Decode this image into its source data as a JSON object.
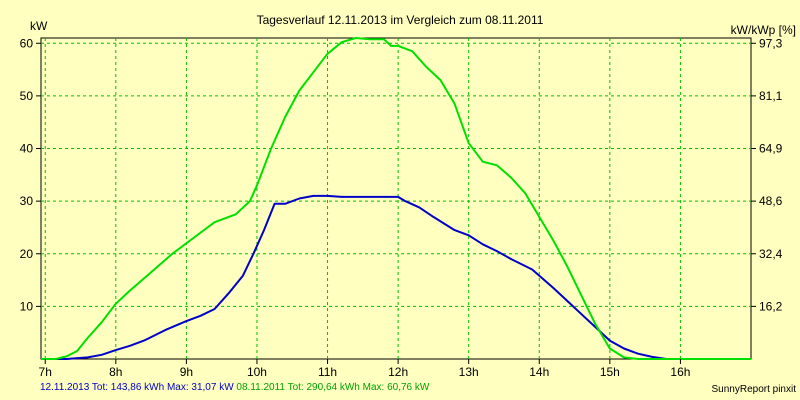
{
  "chart_data": {
    "type": "line",
    "title": "Tagesverlauf 12.11.2013 im Vergleich zum 08.11.2011",
    "ylabel_left": "kW",
    "ylabel_right": "kW/kWp [%]",
    "x_start": 6.94,
    "x_end": 17.0,
    "ylim": [
      0,
      61
    ],
    "y_ticks_left": [
      "10",
      "20",
      "30",
      "40",
      "50",
      "60"
    ],
    "y_ticks_left_values": [
      10,
      20,
      30,
      40,
      50,
      60
    ],
    "y_ticks_right": [
      "16,2",
      "32,4",
      "48,6",
      "64,9",
      "81,1",
      "97,3"
    ],
    "x_ticks": [
      "7h",
      "8h",
      "9h",
      "10h",
      "11h",
      "12h",
      "13h",
      "14h",
      "15h",
      "16h"
    ],
    "x_ticks_values": [
      7,
      8,
      9,
      10,
      11,
      12,
      13,
      14,
      15,
      16
    ],
    "grid": true,
    "series": [
      {
        "name": "12.11.2013",
        "color": "#0000C8",
        "x": [
          6.94,
          7.3,
          7.6,
          7.8,
          8.0,
          8.2,
          8.4,
          8.7,
          9.0,
          9.2,
          9.4,
          9.6,
          9.8,
          9.95,
          10.1,
          10.25,
          10.4,
          10.6,
          10.8,
          11.0,
          11.2,
          11.4,
          11.7,
          12.0,
          12.1,
          12.3,
          12.5,
          12.8,
          13.0,
          13.2,
          13.4,
          13.6,
          13.9,
          14.2,
          14.4,
          14.6,
          14.8,
          15.0,
          15.2,
          15.4,
          15.6,
          15.8,
          16.0,
          16.2,
          16.5,
          17.0
        ],
        "y": [
          0,
          0,
          0.3,
          0.8,
          1.7,
          2.5,
          3.5,
          5.5,
          7.2,
          8.2,
          9.5,
          12.5,
          15.8,
          20.0,
          24.5,
          29.5,
          29.5,
          30.5,
          31.0,
          31.0,
          30.8,
          30.8,
          30.8,
          30.8,
          30.0,
          28.8,
          27.0,
          24.5,
          23.5,
          21.8,
          20.5,
          19.0,
          17.0,
          13.5,
          11.0,
          8.5,
          6.0,
          3.5,
          2.0,
          1.0,
          0.4,
          0,
          0,
          0,
          0,
          0
        ]
      },
      {
        "name": "08.11.2011",
        "color": "#00E000",
        "x": [
          6.94,
          7.15,
          7.3,
          7.45,
          7.6,
          7.8,
          8.0,
          8.2,
          8.5,
          8.8,
          9.1,
          9.4,
          9.7,
          9.9,
          10.0,
          10.2,
          10.4,
          10.6,
          10.8,
          11.0,
          11.2,
          11.4,
          11.6,
          11.8,
          11.9,
          12.0,
          12.2,
          12.4,
          12.6,
          12.8,
          13.0,
          13.2,
          13.4,
          13.6,
          13.8,
          14.0,
          14.2,
          14.4,
          14.6,
          14.8,
          15.0,
          15.2,
          15.4,
          15.6,
          15.8,
          16.0,
          16.2,
          16.4,
          16.6,
          16.8,
          17.0
        ],
        "y": [
          0,
          0,
          0.5,
          1.5,
          4.0,
          7.0,
          10.5,
          13.0,
          16.5,
          20.0,
          23.0,
          26.0,
          27.5,
          30.0,
          33.0,
          40.0,
          46.0,
          51.0,
          54.5,
          58.0,
          60.2,
          61.0,
          60.76,
          60.76,
          59.5,
          59.5,
          58.5,
          55.5,
          53.0,
          48.5,
          41.0,
          37.5,
          36.8,
          34.5,
          31.5,
          27.0,
          22.5,
          17.5,
          12.0,
          6.5,
          2.0,
          0.3,
          0,
          0,
          0,
          0,
          0,
          0,
          0,
          0,
          0
        ]
      }
    ],
    "legend": {
      "placement": "bottom-left",
      "entries": [
        {
          "text": "12.11.2013 Tot: 143,86 kWh Max: 31,07 kW",
          "color": "#0000C8"
        },
        {
          "text": "08.11.2011 Tot: 290,64 kWh Max: 60,76 kW",
          "color": "#00A000"
        }
      ]
    },
    "credit": "SunnyReport pinxit"
  }
}
